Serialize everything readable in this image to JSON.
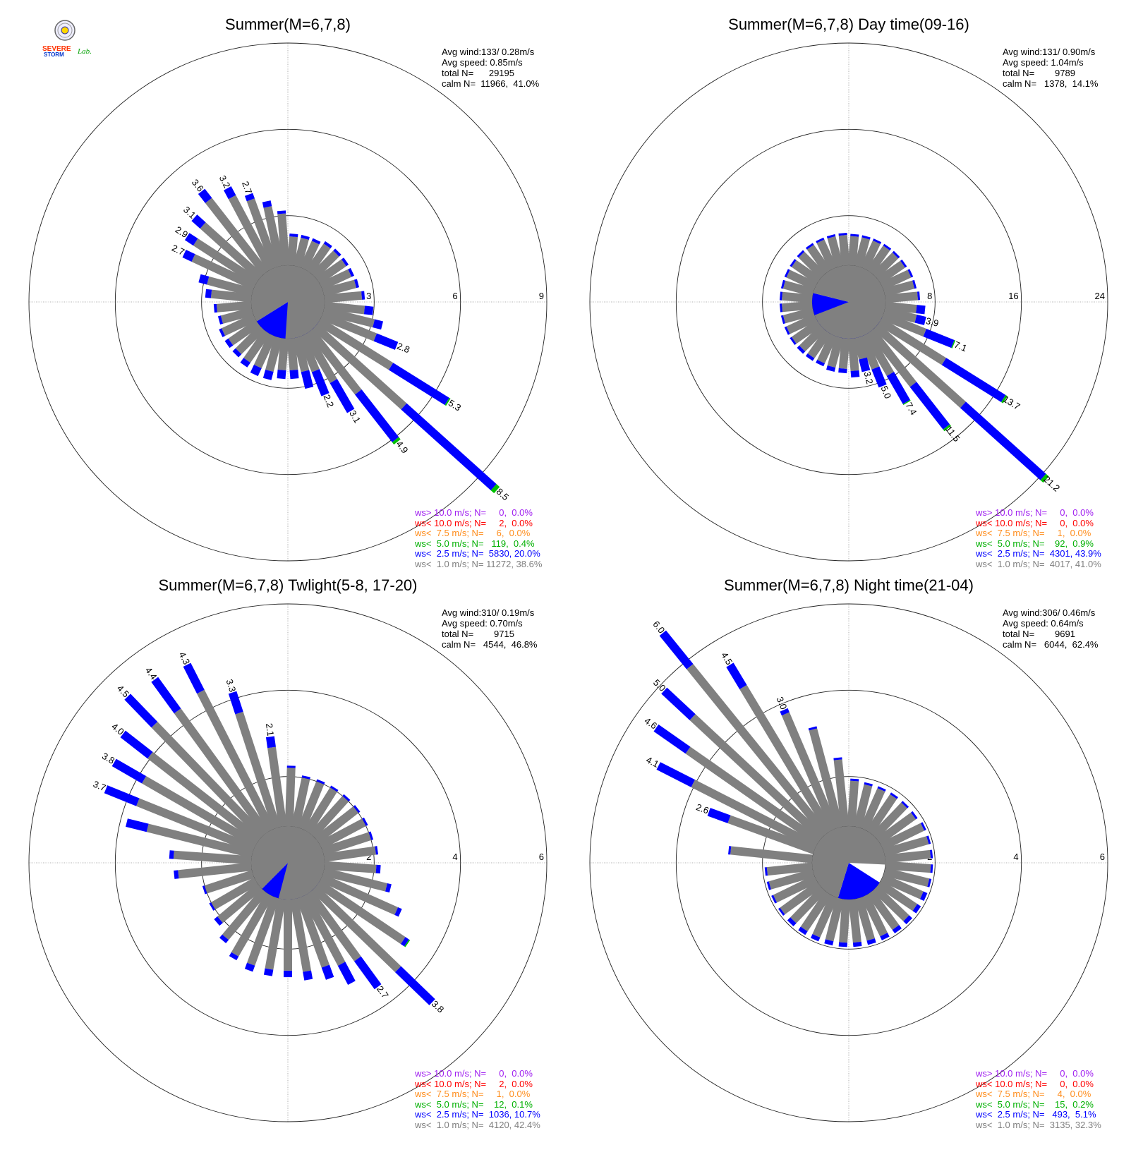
{
  "logo": {
    "text_a": "SEVERE",
    "text_b": "STORM",
    "text_c": "Lab."
  },
  "colors": {
    "calm": "#888888",
    "lt1": "#808080",
    "lt2_5": "#0000ff",
    "lt5": "#00c000",
    "lt7_5": "#ff8c1a",
    "lt10": "#ff0000",
    "gt10": "#a020f0"
  },
  "chart_data": [
    {
      "type": "wind-rose",
      "title": "Summer(M=6,7,8)",
      "stats": [
        "Avg wind:133/ 0.28m/s",
        "Avg speed: 0.85m/s",
        "total N=      29195",
        "calm N=  11966,  41.0%"
      ],
      "rings": [
        3,
        6,
        9
      ],
      "ring_labels": [
        "3",
        "6",
        "9"
      ],
      "calm_pct": 41.0,
      "calm_lt1_pct": 38.6,
      "calm_dir_from_north": 133,
      "bars": [
        {
          "dir": 295,
          "val": 2.7,
          "blue": 0.35,
          "label": "2.7"
        },
        {
          "dir": 303,
          "val": 2.9,
          "blue": 0.35,
          "label": "2.9"
        },
        {
          "dir": 312,
          "val": 3.1,
          "blue": 0.4,
          "label": "3.1"
        },
        {
          "dir": 322,
          "val": 3.6,
          "blue": 0.4,
          "label": "3.6"
        },
        {
          "dir": 332,
          "val": 3.2,
          "blue": 0.35,
          "label": "3.2"
        },
        {
          "dir": 340,
          "val": 2.7,
          "blue": 0.2,
          "label": "2.7"
        },
        {
          "dir": 348,
          "val": 2.3,
          "blue": 0.2
        },
        {
          "dir": 356,
          "val": 1.9,
          "blue": 0.1
        },
        {
          "dir": 5,
          "val": 1.1,
          "blue": 0.1
        },
        {
          "dir": 15,
          "val": 1.1,
          "blue": 0.1
        },
        {
          "dir": 25,
          "val": 1.1,
          "blue": 0.1
        },
        {
          "dir": 35,
          "val": 1.2,
          "blue": 0.1
        },
        {
          "dir": 45,
          "val": 1.2,
          "blue": 0.1
        },
        {
          "dir": 55,
          "val": 1.2,
          "blue": 0.1
        },
        {
          "dir": 65,
          "val": 1.2,
          "blue": 0.1
        },
        {
          "dir": 75,
          "val": 1.25,
          "blue": 0.1
        },
        {
          "dir": 85,
          "val": 1.4,
          "blue": 0.1
        },
        {
          "dir": 96,
          "val": 1.7,
          "blue": 0.3
        },
        {
          "dir": 104,
          "val": 2.1,
          "blue": 0.3
        },
        {
          "dir": 112,
          "val": 2.8,
          "blue": 0.8,
          "label": "2.8"
        },
        {
          "dir": 122,
          "val": 5.3,
          "blue": 2.3,
          "green": 0.05,
          "label": "5.3"
        },
        {
          "dir": 132,
          "val": 8.5,
          "blue": 4.2,
          "green": 0.15,
          "label": "8.5"
        },
        {
          "dir": 142,
          "val": 4.9,
          "blue": 2.1,
          "green": 0.1,
          "label": "4.9"
        },
        {
          "dir": 150,
          "val": 3.1,
          "blue": 1.2,
          "label": "3.1"
        },
        {
          "dir": 158,
          "val": 2.2,
          "blue": 0.9,
          "label": "2.2"
        },
        {
          "dir": 166,
          "val": 1.8,
          "blue": 0.6
        },
        {
          "dir": 175,
          "val": 1.4,
          "blue": 0.3
        },
        {
          "dir": 185,
          "val": 1.4,
          "blue": 0.3
        },
        {
          "dir": 195,
          "val": 1.5,
          "blue": 0.3
        },
        {
          "dir": 205,
          "val": 1.5,
          "blue": 0.3
        },
        {
          "dir": 215,
          "val": 1.4,
          "blue": 0.2
        },
        {
          "dir": 225,
          "val": 1.3,
          "blue": 0.15
        },
        {
          "dir": 235,
          "val": 1.3,
          "blue": 0.15
        },
        {
          "dir": 245,
          "val": 1.3,
          "blue": 0.1
        },
        {
          "dir": 255,
          "val": 1.2,
          "blue": 0.1
        },
        {
          "dir": 265,
          "val": 1.3,
          "blue": 0.1
        },
        {
          "dir": 276,
          "val": 1.6,
          "blue": 0.2
        },
        {
          "dir": 285,
          "val": 1.9,
          "blue": 0.3
        }
      ],
      "legend": [
        {
          "text": "ws> 10.0 m/s; N=     0,  0.0%",
          "color": "#a020f0"
        },
        {
          "text": "ws< 10.0 m/s; N=     2,  0.0%",
          "color": "#ff0000"
        },
        {
          "text": "ws<  7.5 m/s; N=     6,  0.0%",
          "color": "#ff8c1a"
        },
        {
          "text": "ws<  5.0 m/s; N=   119,  0.4%",
          "color": "#00b000"
        },
        {
          "text": "ws<  2.5 m/s; N=  5830, 20.0%",
          "color": "#0000ff"
        },
        {
          "text": "ws<  1.0 m/s; N= 11272, 38.6%",
          "color": "#808080"
        }
      ]
    },
    {
      "type": "wind-rose",
      "title": "Summer(M=6,7,8) Day time(09-16)",
      "stats": [
        "Avg wind:131/ 0.90m/s",
        "Avg speed: 1.04m/s",
        "total N=        9789",
        "calm N=   1378,  14.1%"
      ],
      "rings": [
        8,
        16,
        24
      ],
      "ring_labels": [
        "8",
        "16",
        "24"
      ],
      "calm_pct": 14.1,
      "calm_lt1_pct": 41.0,
      "calm_dir_from_north": 131,
      "bars": [
        {
          "dir": 5,
          "val": 2.9,
          "blue": 0.2
        },
        {
          "dir": 15,
          "val": 2.9,
          "blue": 0.2
        },
        {
          "dir": 25,
          "val": 2.9,
          "blue": 0.2
        },
        {
          "dir": 35,
          "val": 2.9,
          "blue": 0.2
        },
        {
          "dir": 45,
          "val": 2.9,
          "blue": 0.2
        },
        {
          "dir": 55,
          "val": 2.9,
          "blue": 0.2
        },
        {
          "dir": 65,
          "val": 3.0,
          "blue": 0.2
        },
        {
          "dir": 75,
          "val": 3.0,
          "blue": 0.2
        },
        {
          "dir": 85,
          "val": 3.2,
          "blue": 0.2
        },
        {
          "dir": 96,
          "val": 3.7,
          "blue": 0.8
        },
        {
          "dir": 104,
          "val": 3.9,
          "blue": 0.9,
          "label": "3.9"
        },
        {
          "dir": 112,
          "val": 7.1,
          "blue": 2.8,
          "green": 0.1,
          "label": "7.1"
        },
        {
          "dir": 122,
          "val": 13.7,
          "blue": 6.5,
          "green": 0.2,
          "label": "13.7"
        },
        {
          "dir": 132,
          "val": 21.2,
          "blue": 10.0,
          "green": 0.35,
          "label": "21.2"
        },
        {
          "dir": 142,
          "val": 11.5,
          "blue": 5.0,
          "green": 0.2,
          "label": "11.5"
        },
        {
          "dir": 150,
          "val": 7.4,
          "blue": 3.0,
          "green": 0.1,
          "label": "7.4"
        },
        {
          "dir": 158,
          "val": 5.0,
          "blue": 1.8,
          "label": "5.0"
        },
        {
          "dir": 166,
          "val": 3.2,
          "blue": 1.2,
          "label": "3.2"
        },
        {
          "dir": 175,
          "val": 3.6,
          "blue": 0.6
        },
        {
          "dir": 185,
          "val": 3.2,
          "blue": 0.4
        },
        {
          "dir": 195,
          "val": 3.2,
          "blue": 0.4
        },
        {
          "dir": 205,
          "val": 3.0,
          "blue": 0.3
        },
        {
          "dir": 215,
          "val": 3.0,
          "blue": 0.3
        },
        {
          "dir": 225,
          "val": 3.0,
          "blue": 0.3
        },
        {
          "dir": 235,
          "val": 3.0,
          "blue": 0.2
        },
        {
          "dir": 245,
          "val": 3.0,
          "blue": 0.2
        },
        {
          "dir": 255,
          "val": 3.0,
          "blue": 0.2
        },
        {
          "dir": 265,
          "val": 3.0,
          "blue": 0.2
        },
        {
          "dir": 275,
          "val": 3.0,
          "blue": 0.2
        },
        {
          "dir": 285,
          "val": 3.0,
          "blue": 0.2
        },
        {
          "dir": 295,
          "val": 3.0,
          "blue": 0.2
        },
        {
          "dir": 305,
          "val": 3.0,
          "blue": 0.2
        },
        {
          "dir": 315,
          "val": 3.0,
          "blue": 0.2
        },
        {
          "dir": 325,
          "val": 3.0,
          "blue": 0.2
        },
        {
          "dir": 335,
          "val": 3.0,
          "blue": 0.2
        },
        {
          "dir": 345,
          "val": 3.0,
          "blue": 0.2
        },
        {
          "dir": 355,
          "val": 3.0,
          "blue": 0.2
        }
      ],
      "legend": [
        {
          "text": "ws> 10.0 m/s; N=     0,  0.0%",
          "color": "#a020f0"
        },
        {
          "text": "ws< 10.0 m/s; N=     0,  0.0%",
          "color": "#ff0000"
        },
        {
          "text": "ws<  7.5 m/s; N=     1,  0.0%",
          "color": "#ff8c1a"
        },
        {
          "text": "ws<  5.0 m/s; N=    92,  0.9%",
          "color": "#00b000"
        },
        {
          "text": "ws<  2.5 m/s; N=  4301, 43.9%",
          "color": "#0000ff"
        },
        {
          "text": "ws<  1.0 m/s; N=  4017, 41.0%",
          "color": "#808080"
        }
      ]
    },
    {
      "type": "wind-rose",
      "title": "Summer(M=6,7,8) Twlight(5-8, 17-20)",
      "stats": [
        "Avg wind:310/ 0.19m/s",
        "Avg speed: 0.70m/s",
        "total N=        9715",
        "calm N=   4544,  46.8%"
      ],
      "rings": [
        2,
        4,
        6
      ],
      "ring_labels": [
        "2",
        "4",
        "6"
      ],
      "calm_pct": 46.8,
      "calm_lt1_pct": 42.4,
      "calm_dir_from_north": 130,
      "bars": [
        {
          "dir": 292,
          "val": 3.7,
          "blue": 0.8,
          "label": "3.7"
        },
        {
          "dir": 300,
          "val": 3.8,
          "blue": 0.8,
          "label": "3.8"
        },
        {
          "dir": 308,
          "val": 4.0,
          "blue": 0.8,
          "label": "4.0"
        },
        {
          "dir": 316,
          "val": 4.5,
          "blue": 0.9,
          "label": "4.5"
        },
        {
          "dir": 324,
          "val": 4.4,
          "blue": 0.9,
          "label": "4.4"
        },
        {
          "dir": 333,
          "val": 4.3,
          "blue": 0.7,
          "label": "4.3"
        },
        {
          "dir": 342,
          "val": 3.3,
          "blue": 0.5,
          "label": "3.3"
        },
        {
          "dir": 352,
          "val": 2.1,
          "blue": 0.25,
          "label": "2.1"
        },
        {
          "dir": 2,
          "val": 1.4,
          "blue": 0.05
        },
        {
          "dir": 12,
          "val": 1.2,
          "blue": 0.05
        },
        {
          "dir": 22,
          "val": 1.2,
          "blue": 0.05
        },
        {
          "dir": 32,
          "val": 1.2,
          "blue": 0.05
        },
        {
          "dir": 42,
          "val": 1.2,
          "blue": 0.05
        },
        {
          "dir": 52,
          "val": 1.2,
          "blue": 0.05
        },
        {
          "dir": 62,
          "val": 1.2,
          "blue": 0.05
        },
        {
          "dir": 72,
          "val": 1.2,
          "blue": 0.05
        },
        {
          "dir": 82,
          "val": 1.25,
          "blue": 0.05
        },
        {
          "dir": 94,
          "val": 1.3,
          "blue": 0.1
        },
        {
          "dir": 104,
          "val": 1.6,
          "blue": 0.1
        },
        {
          "dir": 114,
          "val": 2.0,
          "blue": 0.1
        },
        {
          "dir": 124,
          "val": 2.5,
          "blue": 0.1,
          "green": 0.03
        },
        {
          "dir": 134,
          "val": 3.8,
          "blue": 1.1,
          "label": "3.8"
        },
        {
          "dir": 144,
          "val": 2.7,
          "blue": 0.8,
          "label": "2.7"
        },
        {
          "dir": 152,
          "val": 2.3,
          "blue": 0.5
        },
        {
          "dir": 160,
          "val": 2.0,
          "blue": 0.3
        },
        {
          "dir": 170,
          "val": 1.9,
          "blue": 0.2
        },
        {
          "dir": 180,
          "val": 1.8,
          "blue": 0.15
        },
        {
          "dir": 190,
          "val": 1.8,
          "blue": 0.15
        },
        {
          "dir": 200,
          "val": 1.8,
          "blue": 0.15
        },
        {
          "dir": 210,
          "val": 1.7,
          "blue": 0.1
        },
        {
          "dir": 220,
          "val": 1.5,
          "blue": 0.1
        },
        {
          "dir": 230,
          "val": 1.3,
          "blue": 0.1
        },
        {
          "dir": 240,
          "val": 1.2,
          "blue": 0.05
        },
        {
          "dir": 252,
          "val": 1.2,
          "blue": 0.05
        },
        {
          "dir": 264,
          "val": 1.8,
          "blue": 0.1
        },
        {
          "dir": 274,
          "val": 1.9,
          "blue": 0.1
        },
        {
          "dir": 284,
          "val": 3.0,
          "blue": 0.5
        }
      ],
      "legend": [
        {
          "text": "ws> 10.0 m/s; N=     0,  0.0%",
          "color": "#a020f0"
        },
        {
          "text": "ws< 10.0 m/s; N=     2,  0.0%",
          "color": "#ff0000"
        },
        {
          "text": "ws<  7.5 m/s; N=     1,  0.0%",
          "color": "#ff8c1a"
        },
        {
          "text": "ws<  5.0 m/s; N=    12,  0.1%",
          "color": "#00b000"
        },
        {
          "text": "ws<  2.5 m/s; N=  1036, 10.7%",
          "color": "#0000ff"
        },
        {
          "text": "ws<  1.0 m/s; N=  4120, 42.4%",
          "color": "#808080"
        }
      ]
    },
    {
      "type": "wind-rose",
      "title": "Summer(M=6,7,8) Night time(21-04)",
      "stats": [
        "Avg wind:306/ 0.46m/s",
        "Avg speed: 0.64m/s",
        "total N=        9691",
        "calm N=   6044,  62.4%"
      ],
      "rings": [
        2,
        4,
        6
      ],
      "ring_labels": [
        "2",
        "4",
        "6"
      ],
      "calm_pct": 62.4,
      "calm_lt1_pct": 32.3,
      "calm_dir_from_north": 130,
      "bars": [
        {
          "dir": 290,
          "val": 2.6,
          "blue": 0.5,
          "label": "2.6"
        },
        {
          "dir": 297,
          "val": 4.1,
          "blue": 0.9,
          "label": "4.1"
        },
        {
          "dir": 305,
          "val": 4.6,
          "blue": 0.9,
          "label": "4.6"
        },
        {
          "dir": 313,
          "val": 5.0,
          "blue": 0.9,
          "label": "5.0"
        },
        {
          "dir": 321,
          "val": 6.0,
          "blue": 1.0,
          "label": "6.0"
        },
        {
          "dir": 329,
          "val": 4.5,
          "blue": 0.6,
          "label": "4.5"
        },
        {
          "dir": 337,
          "val": 3.0,
          "blue": 0.1,
          "label": "3.0"
        },
        {
          "dir": 345,
          "val": 2.4,
          "blue": 0.05
        },
        {
          "dir": 354,
          "val": 1.6,
          "blue": 0.05
        },
        {
          "dir": 4,
          "val": 1.1,
          "blue": 0.05
        },
        {
          "dir": 14,
          "val": 1.05,
          "blue": 0.05
        },
        {
          "dir": 24,
          "val": 1.05,
          "blue": 0.05
        },
        {
          "dir": 34,
          "val": 1.05,
          "blue": 0.05
        },
        {
          "dir": 44,
          "val": 1.05,
          "blue": 0.05
        },
        {
          "dir": 54,
          "val": 1.05,
          "blue": 0.05
        },
        {
          "dir": 64,
          "val": 1.1,
          "blue": 0.05
        },
        {
          "dir": 74,
          "val": 1.1,
          "blue": 0.05
        },
        {
          "dir": 84,
          "val": 1.1,
          "blue": 0.05
        },
        {
          "dir": 94,
          "val": 1.1,
          "blue": 0.05
        },
        {
          "dir": 104,
          "val": 1.1,
          "blue": 0.05
        },
        {
          "dir": 114,
          "val": 1.1,
          "blue": 0.1
        },
        {
          "dir": 124,
          "val": 1.1,
          "blue": 0.1
        },
        {
          "dir": 134,
          "val": 1.1,
          "blue": 0.1
        },
        {
          "dir": 144,
          "val": 1.1,
          "blue": 0.1
        },
        {
          "dir": 154,
          "val": 1.1,
          "blue": 0.1
        },
        {
          "dir": 164,
          "val": 1.1,
          "blue": 0.1
        },
        {
          "dir": 174,
          "val": 1.1,
          "blue": 0.1
        },
        {
          "dir": 184,
          "val": 1.1,
          "blue": 0.1
        },
        {
          "dir": 194,
          "val": 1.1,
          "blue": 0.1
        },
        {
          "dir": 204,
          "val": 1.1,
          "blue": 0.1
        },
        {
          "dir": 214,
          "val": 1.1,
          "blue": 0.1
        },
        {
          "dir": 224,
          "val": 1.1,
          "blue": 0.1
        },
        {
          "dir": 234,
          "val": 1.1,
          "blue": 0.05
        },
        {
          "dir": 244,
          "val": 1.1,
          "blue": 0.05
        },
        {
          "dir": 254,
          "val": 1.1,
          "blue": 0.05
        },
        {
          "dir": 264,
          "val": 1.1,
          "blue": 0.05
        },
        {
          "dir": 276,
          "val": 1.95,
          "blue": 0.05
        }
      ],
      "legend": [
        {
          "text": "ws> 10.0 m/s; N=     0,  0.0%",
          "color": "#a020f0"
        },
        {
          "text": "ws< 10.0 m/s; N=     0,  0.0%",
          "color": "#ff0000"
        },
        {
          "text": "ws<  7.5 m/s; N=     4,  0.0%",
          "color": "#ff8c1a"
        },
        {
          "text": "ws<  5.0 m/s; N=    15,  0.2%",
          "color": "#00b000"
        },
        {
          "text": "ws<  2.5 m/s; N=   493,  5.1%",
          "color": "#0000ff"
        },
        {
          "text": "ws<  1.0 m/s; N=  3135, 32.3%",
          "color": "#808080"
        }
      ]
    }
  ]
}
